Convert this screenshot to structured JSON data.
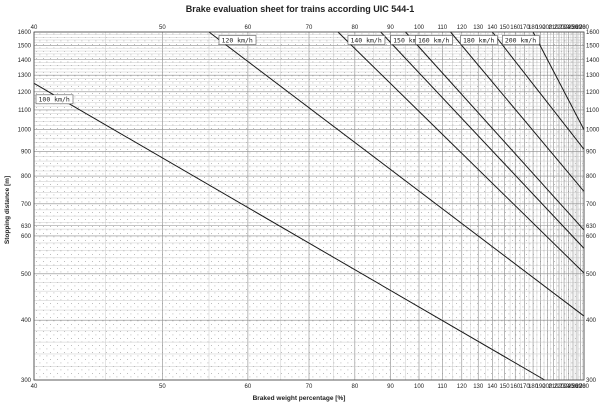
{
  "chart_data": {
    "type": "line",
    "title": "Brake evaluation sheet for trains according UIC 544-1",
    "xlabel": "Braked weight percentage [%]",
    "ylabel": "Stopping distance [m]",
    "x_scale": "reciprocal",
    "y_scale": "log",
    "xlim": [
      40,
      280
    ],
    "ylim": [
      300,
      1600
    ],
    "x_ticks": [
      40,
      50,
      60,
      70,
      80,
      90,
      100,
      110,
      120,
      130,
      140,
      150,
      160,
      170,
      180,
      190,
      200,
      210,
      220,
      230,
      240,
      250,
      260,
      270,
      280
    ],
    "y_ticks": [
      300,
      400,
      500,
      600,
      630,
      700,
      800,
      900,
      1000,
      1100,
      1200,
      1300,
      1400,
      1500,
      1600
    ],
    "grid": true,
    "series": [
      {
        "name": "100 km/h",
        "x": [
          40,
          196
        ],
        "y": [
          1250,
          300
        ]
      },
      {
        "name": "120 km/h",
        "x": [
          55,
          280
        ],
        "y": [
          1600,
          408
        ]
      },
      {
        "name": "140 km/h",
        "x": [
          76,
          280
        ],
        "y": [
          1600,
          502
        ]
      },
      {
        "name": "150 km/h",
        "x": [
          87,
          280
        ],
        "y": [
          1600,
          565
        ]
      },
      {
        "name": "160 km/h",
        "x": [
          95,
          280
        ],
        "y": [
          1600,
          617
        ]
      },
      {
        "name": "180 km/h",
        "x": [
          114,
          280
        ],
        "y": [
          1600,
          743
        ]
      },
      {
        "name": "200 km/h",
        "x": [
          140,
          280
        ],
        "y": [
          1600,
          910
        ]
      },
      {
        "name": "",
        "x": [
          180,
          280
        ],
        "y": [
          1600,
          1000
        ]
      }
    ]
  },
  "colors": {
    "line": "#1a1a1a",
    "grid_major": "#8a8a8a",
    "grid_minor": "#bcbcbc",
    "dots": "#9a9a9a",
    "label_border": "#555555"
  }
}
